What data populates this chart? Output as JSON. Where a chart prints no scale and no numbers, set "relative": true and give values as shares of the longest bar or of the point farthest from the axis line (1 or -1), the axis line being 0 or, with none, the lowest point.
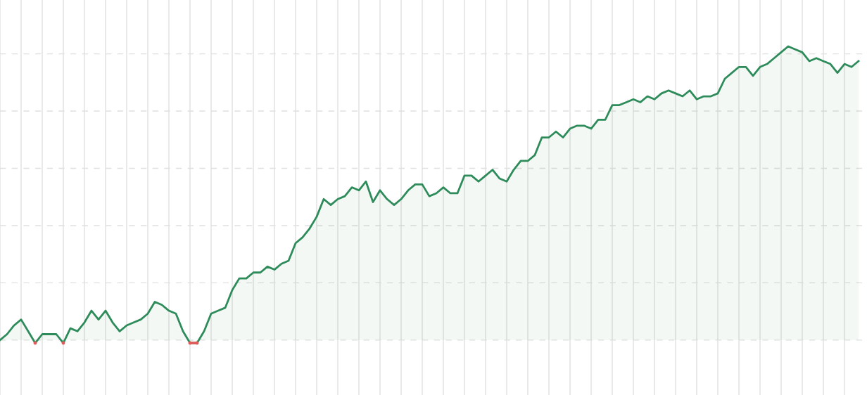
{
  "chart_data": {
    "type": "area",
    "relative": true,
    "grid": true,
    "legend": false,
    "categories": [
      null,
      null,
      null,
      null,
      null,
      null,
      null,
      null,
      null,
      null,
      null,
      null,
      null,
      null,
      null,
      null,
      null,
      null,
      null,
      null,
      null,
      null,
      null,
      null,
      null,
      null,
      null,
      null,
      null,
      null,
      null,
      null,
      null,
      null,
      null,
      null,
      null,
      null,
      null,
      null,
      null,
      null,
      null,
      null,
      null,
      null,
      null,
      null,
      null,
      null,
      null,
      null,
      null,
      null,
      null,
      null,
      null,
      null,
      null,
      null,
      null,
      null,
      null,
      null,
      null,
      null,
      null,
      null,
      null,
      null,
      null,
      null,
      null,
      null,
      null,
      null,
      null,
      null,
      null,
      null,
      null,
      null,
      null,
      null,
      null,
      null,
      null,
      null,
      null,
      null,
      null,
      null,
      null,
      null,
      null,
      null,
      null,
      null,
      null,
      null,
      null,
      null,
      null,
      null,
      null,
      null,
      null,
      null,
      null,
      null,
      null,
      null,
      null,
      null,
      null,
      null,
      null,
      null,
      null,
      null,
      null,
      null,
      null
    ],
    "series": [
      {
        "type": "area",
        "color": "#2e8b5a",
        "values": [
          0,
          0.02,
          0.05,
          0.07,
          0.03,
          -0.01,
          0.02,
          0.02,
          0.02,
          -0.01,
          0.04,
          0.03,
          0.06,
          0.1,
          0.07,
          0.1,
          0.06,
          0.03,
          0.05,
          0.06,
          0.07,
          0.09,
          0.13,
          0.12,
          0.1,
          0.09,
          0.03,
          -0.01,
          -0.01,
          0.03,
          0.09,
          0.1,
          0.11,
          0.17,
          0.21,
          0.21,
          0.23,
          0.23,
          0.25,
          0.24,
          0.26,
          0.27,
          0.33,
          0.35,
          0.38,
          0.42,
          0.48,
          0.46,
          0.48,
          0.49,
          0.52,
          0.51,
          0.54,
          0.47,
          0.51,
          0.48,
          0.46,
          0.48,
          0.51,
          0.53,
          0.53,
          0.49,
          0.5,
          0.52,
          0.5,
          0.5,
          0.56,
          0.56,
          0.54,
          0.56,
          0.58,
          0.55,
          0.54,
          0.58,
          0.61,
          0.61,
          0.63,
          0.69,
          0.69,
          0.71,
          0.69,
          0.72,
          0.73,
          0.73,
          0.72,
          0.75,
          0.75,
          0.8,
          0.8,
          0.81,
          0.82,
          0.81,
          0.83,
          0.82,
          0.84,
          0.85,
          0.84,
          0.83,
          0.85,
          0.82,
          0.83,
          0.83,
          0.84,
          0.89,
          0.91,
          0.93,
          0.93,
          0.9,
          0.93,
          0.94,
          0.96,
          0.98,
          1,
          0.99,
          0.98,
          0.95,
          0.96,
          0.95,
          0.94,
          0.91,
          0.94,
          0.93,
          0.95
        ]
      },
      {
        "type": "line",
        "color": "#e05a5a",
        "marker": "circle",
        "values": [
          null,
          null,
          null,
          null,
          null,
          -0.01,
          null,
          null,
          null,
          -0.01,
          null,
          null,
          null,
          null,
          null,
          null,
          null,
          null,
          null,
          null,
          null,
          null,
          null,
          null,
          null,
          null,
          null,
          -0.01,
          -0.01,
          null,
          null,
          null,
          null,
          null,
          null,
          null,
          null,
          null,
          null,
          null,
          null,
          null,
          null,
          null,
          null,
          null,
          null,
          null,
          null,
          null,
          null,
          null,
          null,
          null,
          null,
          null,
          null,
          null,
          null,
          null,
          null,
          null,
          null,
          null,
          null,
          null,
          null,
          null,
          null,
          null,
          null,
          null,
          null,
          null,
          null,
          null,
          null,
          null,
          null,
          null,
          null,
          null,
          null,
          null,
          null,
          null,
          null,
          null,
          null,
          null,
          null,
          null,
          null,
          null,
          null,
          null,
          null,
          null,
          null,
          null,
          null,
          null,
          null,
          null,
          null,
          null,
          null,
          null,
          null,
          null,
          null,
          null,
          null,
          null,
          null,
          null,
          null,
          null,
          null,
          null,
          null,
          null,
          null
        ]
      }
    ]
  }
}
